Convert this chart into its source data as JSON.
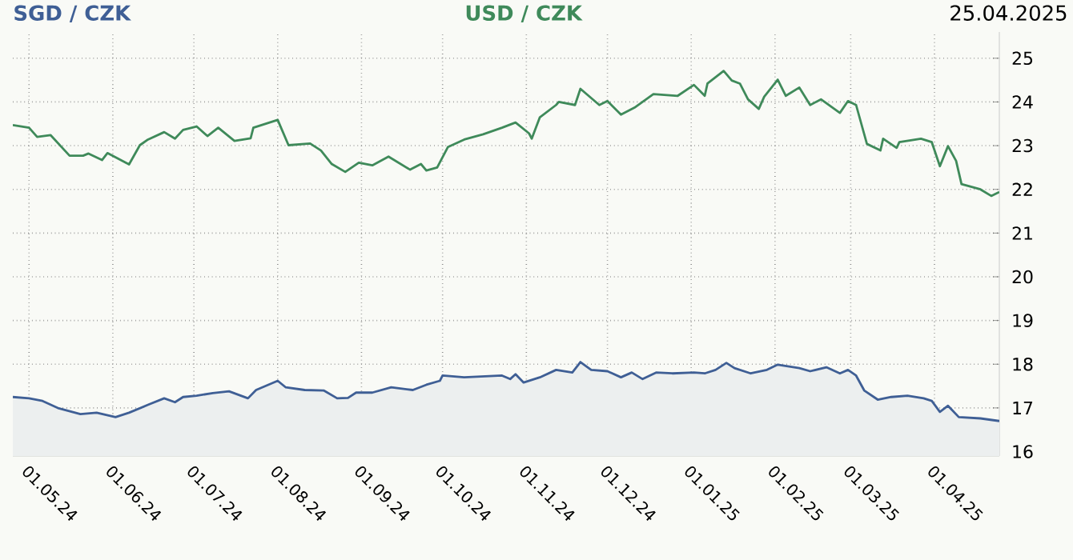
{
  "chart_data": {
    "type": "line",
    "annotations": [
      "25.04.2025"
    ],
    "legend": "top",
    "grid": true,
    "line_style": "solid",
    "xlim": [
      "2024-04-25",
      "2025-04-25"
    ],
    "xticks": [
      {
        "value": "2024-05-01",
        "label": "01.05.24"
      },
      {
        "value": "2024-06-01",
        "label": "01.06.24"
      },
      {
        "value": "2024-07-01",
        "label": "01.07.24"
      },
      {
        "value": "2024-08-01",
        "label": "01.08.24"
      },
      {
        "value": "2024-09-01",
        "label": "01.09.24"
      },
      {
        "value": "2024-10-01",
        "label": "01.10.24"
      },
      {
        "value": "2024-11-01",
        "label": "01.11.24"
      },
      {
        "value": "2024-12-01",
        "label": "01.12.24"
      },
      {
        "value": "2025-01-01",
        "label": "01.01.25"
      },
      {
        "value": "2025-02-01",
        "label": "01.02.25"
      },
      {
        "value": "2025-03-01",
        "label": "01.03.25"
      },
      {
        "value": "2025-04-01",
        "label": "01.04.25"
      }
    ],
    "ylim": [
      15.9,
      25.6
    ],
    "yticks": [
      16,
      17,
      18,
      19,
      20,
      21,
      22,
      23,
      24,
      25
    ],
    "series": [
      {
        "name": "SGD / CZK",
        "type": "area",
        "color": "#3f5f95",
        "x": [
          "2024-04-25",
          "2024-05-01",
          "2024-05-06",
          "2024-05-12",
          "2024-05-20",
          "2024-05-26",
          "2024-06-02",
          "2024-06-07",
          "2024-06-14",
          "2024-06-20",
          "2024-06-24",
          "2024-06-27",
          "2024-07-02",
          "2024-07-08",
          "2024-07-14",
          "2024-07-21",
          "2024-07-24",
          "2024-08-01",
          "2024-08-04",
          "2024-08-11",
          "2024-08-18",
          "2024-08-23",
          "2024-08-27",
          "2024-08-30",
          "2024-09-05",
          "2024-09-12",
          "2024-09-20",
          "2024-09-25",
          "2024-09-30",
          "2024-10-01",
          "2024-10-09",
          "2024-10-23",
          "2024-10-26",
          "2024-10-28",
          "2024-10-31",
          "2024-11-06",
          "2024-11-12",
          "2024-11-18",
          "2024-11-21",
          "2024-11-25",
          "2024-12-01",
          "2024-12-06",
          "2024-12-10",
          "2024-12-14",
          "2024-12-19",
          "2024-12-25",
          "2025-01-02",
          "2025-01-06",
          "2025-01-10",
          "2025-01-14",
          "2025-01-17",
          "2025-01-23",
          "2025-01-29",
          "2025-02-02",
          "2025-02-10",
          "2025-02-14",
          "2025-02-20",
          "2025-02-25",
          "2025-02-28",
          "2025-03-03",
          "2025-03-06",
          "2025-03-11",
          "2025-03-16",
          "2025-03-22",
          "2025-03-28",
          "2025-03-31",
          "2025-04-03",
          "2025-04-06",
          "2025-04-10",
          "2025-04-18",
          "2025-04-25"
        ],
        "values": [
          17.25,
          17.22,
          17.16,
          16.99,
          16.86,
          16.89,
          16.79,
          16.89,
          17.07,
          17.22,
          17.13,
          17.25,
          17.28,
          17.34,
          17.38,
          17.22,
          17.41,
          17.62,
          17.47,
          17.41,
          17.4,
          17.22,
          17.23,
          17.35,
          17.35,
          17.47,
          17.41,
          17.53,
          17.62,
          17.74,
          17.7,
          17.74,
          17.66,
          17.77,
          17.58,
          17.7,
          17.87,
          17.81,
          18.05,
          17.87,
          17.84,
          17.7,
          17.81,
          17.66,
          17.81,
          17.79,
          17.81,
          17.79,
          17.87,
          18.03,
          17.91,
          17.79,
          17.87,
          17.99,
          17.91,
          17.84,
          17.93,
          17.79,
          17.87,
          17.74,
          17.4,
          17.19,
          17.25,
          17.28,
          17.22,
          17.16,
          16.91,
          17.05,
          16.79,
          16.76,
          16.7
        ]
      },
      {
        "name": "USD / CZK",
        "color": "#3f8a5a",
        "x": [
          "2024-04-25",
          "2024-05-01",
          "2024-05-04",
          "2024-05-09",
          "2024-05-16",
          "2024-05-21",
          "2024-05-23",
          "2024-05-28",
          "2024-05-30",
          "2024-06-07",
          "2024-06-11",
          "2024-06-14",
          "2024-06-20",
          "2024-06-24",
          "2024-06-27",
          "2024-07-02",
          "2024-07-06",
          "2024-07-10",
          "2024-07-16",
          "2024-07-22",
          "2024-07-23",
          "2024-08-01",
          "2024-08-05",
          "2024-08-13",
          "2024-08-17",
          "2024-08-21",
          "2024-08-26",
          "2024-08-31",
          "2024-09-05",
          "2024-09-11",
          "2024-09-19",
          "2024-09-23",
          "2024-09-25",
          "2024-09-29",
          "2024-10-03",
          "2024-10-09",
          "2024-10-16",
          "2024-10-23",
          "2024-10-28",
          "2024-11-02",
          "2024-11-03",
          "2024-11-06",
          "2024-11-12",
          "2024-11-13",
          "2024-11-19",
          "2024-11-21",
          "2024-11-28",
          "2024-12-01",
          "2024-12-06",
          "2024-12-11",
          "2024-12-18",
          "2024-12-27",
          "2025-01-02",
          "2025-01-06",
          "2025-01-07",
          "2025-01-13",
          "2025-01-16",
          "2025-01-19",
          "2025-01-22",
          "2025-01-26",
          "2025-01-28",
          "2025-02-02",
          "2025-02-05",
          "2025-02-10",
          "2025-02-14",
          "2025-02-18",
          "2025-02-25",
          "2025-02-28",
          "2025-03-03",
          "2025-03-07",
          "2025-03-12",
          "2025-03-13",
          "2025-03-18",
          "2025-03-19",
          "2025-03-27",
          "2025-03-31",
          "2025-04-03",
          "2025-04-06",
          "2025-04-09",
          "2025-04-11",
          "2025-04-18",
          "2025-04-22",
          "2025-04-25"
        ],
        "values": [
          23.47,
          23.41,
          23.2,
          23.24,
          22.77,
          22.77,
          22.82,
          22.67,
          22.83,
          22.57,
          23.01,
          23.14,
          23.31,
          23.16,
          23.36,
          23.44,
          23.22,
          23.41,
          23.11,
          23.17,
          23.41,
          23.59,
          23.01,
          23.05,
          22.89,
          22.58,
          22.4,
          22.61,
          22.55,
          22.75,
          22.45,
          22.58,
          22.43,
          22.5,
          22.97,
          23.14,
          23.26,
          23.41,
          23.53,
          23.28,
          23.16,
          23.65,
          23.93,
          24.0,
          23.93,
          24.3,
          23.93,
          24.02,
          23.71,
          23.87,
          24.18,
          24.14,
          24.39,
          24.14,
          24.42,
          24.71,
          24.49,
          24.42,
          24.06,
          23.84,
          24.12,
          24.51,
          24.14,
          24.33,
          23.93,
          24.06,
          23.75,
          24.02,
          23.93,
          23.04,
          22.89,
          23.16,
          22.95,
          23.08,
          23.16,
          23.08,
          22.53,
          22.99,
          22.65,
          22.12,
          22.0,
          21.85,
          21.94
        ]
      }
    ]
  }
}
